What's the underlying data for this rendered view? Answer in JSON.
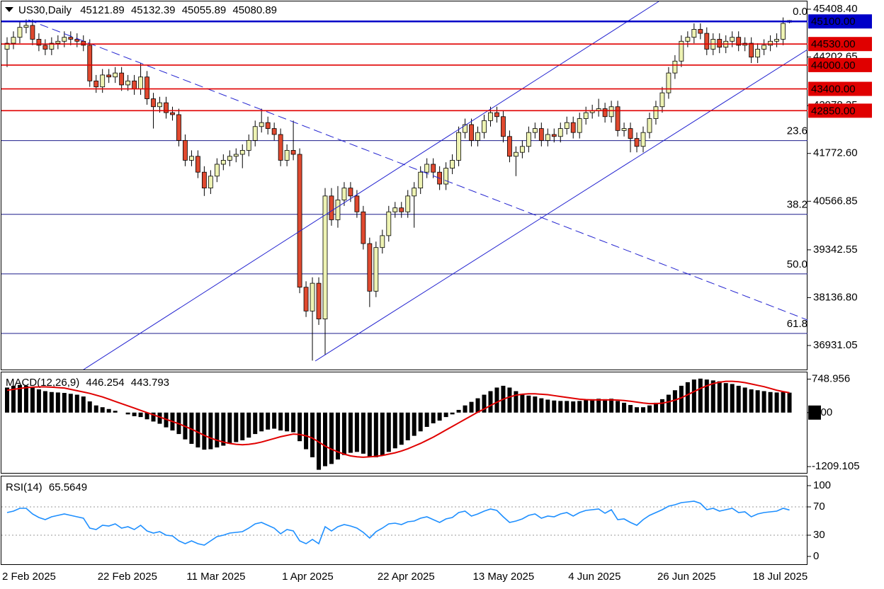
{
  "chart_data": {
    "type": "candlestick",
    "symbol": "US30,Daily",
    "categories": [
      "2 Feb 2025",
      null,
      null,
      null,
      null,
      null,
      null,
      null,
      null,
      null,
      null,
      null,
      null,
      null,
      null,
      "22 Feb 2025",
      null,
      null,
      null,
      null,
      null,
      null,
      null,
      null,
      null,
      null,
      null,
      null,
      null,
      "11 Mar 2025",
      null,
      null,
      null,
      null,
      null,
      null,
      null,
      null,
      null,
      null,
      null,
      null,
      null,
      null,
      "1 Apr 2025",
      null,
      null,
      null,
      null,
      null,
      null,
      null,
      null,
      null,
      null,
      null,
      null,
      null,
      null,
      "22 Apr 2025",
      null,
      null,
      null,
      null,
      null,
      null,
      null,
      null,
      null,
      null,
      null,
      null,
      null,
      null,
      "13 May 2025",
      null,
      null,
      null,
      null,
      null,
      null,
      null,
      null,
      null,
      null,
      null,
      null,
      null,
      null,
      "4 Jun 2025",
      null,
      null,
      null,
      null,
      null,
      null,
      null,
      null,
      null,
      null,
      null,
      null,
      null,
      "26 Jun 2025",
      null,
      null,
      null,
      null,
      null,
      null,
      null,
      null,
      null,
      null,
      null,
      null,
      null,
      null,
      "18 Jul 2025",
      null,
      null,
      null,
      null,
      null
    ],
    "open": [
      44400,
      44550,
      44700,
      44950,
      45000,
      44650,
      44500,
      44400,
      44550,
      44600,
      44700,
      44650,
      44600,
      44500,
      43600,
      43450,
      43750,
      43700,
      43800,
      43500,
      43600,
      43400,
      43700,
      43150,
      42950,
      43050,
      42800,
      42750,
      42100,
      41600,
      41700,
      41300,
      40900,
      41200,
      41500,
      41600,
      41700,
      41750,
      41850,
      42100,
      42450,
      42550,
      42400,
      42250,
      41600,
      41850,
      41750,
      38400,
      37800,
      38500,
      37600,
      40700,
      40100,
      40600,
      40900,
      40700,
      40300,
      39500,
      38300,
      39400,
      39700,
      40300,
      40400,
      40300,
      40700,
      40900,
      41300,
      41500,
      41300,
      41000,
      41400,
      41600,
      42300,
      42500,
      42100,
      42300,
      42600,
      42800,
      42700,
      42200,
      41700,
      41800,
      41950,
      42300,
      42400,
      42100,
      42250,
      42200,
      42400,
      42550,
      42300,
      42650,
      42800,
      42850,
      42900,
      42700,
      42950,
      42350,
      42400,
      42150,
      41950,
      42300,
      42650,
      42950,
      43300,
      43800,
      44100,
      44600,
      44700,
      44900,
      44800,
      44400,
      44650,
      44450,
      44600,
      44700,
      44500,
      44550,
      44200,
      44400,
      44500,
      44600,
      44650,
      45121.89
    ],
    "high": [
      44700,
      44850,
      45100,
      45150,
      45150,
      44800,
      44650,
      44700,
      44750,
      44850,
      44850,
      44800,
      44750,
      44650,
      43750,
      43900,
      43900,
      43950,
      43950,
      43750,
      43750,
      44050,
      43850,
      43300,
      43200,
      43200,
      42950,
      42900,
      42250,
      41850,
      41850,
      41450,
      41350,
      41650,
      41750,
      41850,
      41900,
      42000,
      42250,
      42600,
      42900,
      42700,
      42550,
      42400,
      42000,
      42600,
      41900,
      38550,
      38650,
      38650,
      40900,
      40900,
      40950,
      41050,
      41050,
      40850,
      40450,
      39650,
      39550,
      39850,
      40450,
      40550,
      40550,
      40850,
      41050,
      41450,
      41650,
      41650,
      41450,
      41550,
      41750,
      42450,
      42650,
      42650,
      42450,
      42750,
      42950,
      42950,
      42850,
      42350,
      41950,
      42100,
      42450,
      42550,
      42550,
      42400,
      42400,
      42550,
      42700,
      42700,
      42800,
      42950,
      43000,
      43150,
      43050,
      43100,
      43100,
      42550,
      42550,
      42300,
      42450,
      42800,
      43100,
      43450,
      43950,
      44250,
      44750,
      44850,
      45050,
      45050,
      44950,
      44800,
      44800,
      44750,
      44850,
      44850,
      44700,
      44700,
      44550,
      44650,
      44750,
      44800,
      45200,
      45132.39
    ],
    "low": [
      43950,
      44400,
      44550,
      44800,
      44500,
      44350,
      44250,
      44250,
      44400,
      44450,
      44500,
      44450,
      44350,
      43450,
      43300,
      43300,
      43550,
      43550,
      43350,
      43350,
      43250,
      43250,
      43000,
      42400,
      42800,
      42650,
      42600,
      41950,
      41450,
      41450,
      41150,
      40700,
      40750,
      41050,
      41350,
      41450,
      41550,
      41400,
      41700,
      41950,
      42300,
      42250,
      42100,
      41450,
      41450,
      41600,
      38250,
      37650,
      36550,
      37450,
      36700,
      39950,
      39900,
      40450,
      40550,
      40150,
      39350,
      37900,
      38150,
      39250,
      39550,
      40150,
      40150,
      40150,
      39900,
      40750,
      41150,
      41150,
      40850,
      40850,
      41250,
      41450,
      42150,
      41950,
      41950,
      42150,
      42450,
      42550,
      42050,
      41550,
      41200,
      41650,
      41800,
      42150,
      41950,
      41950,
      42050,
      42050,
      42250,
      42150,
      42150,
      42500,
      42650,
      42700,
      42550,
      42550,
      42200,
      42200,
      41800,
      41800,
      41800,
      42150,
      42500,
      42800,
      43150,
      43650,
      43950,
      44450,
      44550,
      44650,
      44250,
      44250,
      44300,
      44300,
      44450,
      44350,
      44350,
      44050,
      44050,
      44250,
      44350,
      44450,
      44500,
      45055.89
    ],
    "close": [
      44550,
      44700,
      44950,
      45000,
      44650,
      44500,
      44400,
      44550,
      44600,
      44700,
      44650,
      44600,
      44500,
      43600,
      43450,
      43750,
      43700,
      43800,
      43500,
      43600,
      43400,
      43700,
      43150,
      42950,
      43050,
      42800,
      42750,
      42100,
      41600,
      41700,
      41300,
      40900,
      41200,
      41500,
      41600,
      41700,
      41750,
      41850,
      42100,
      42450,
      42550,
      42400,
      42250,
      41600,
      41850,
      41750,
      38400,
      37800,
      38500,
      37600,
      40700,
      40100,
      40600,
      40900,
      40700,
      40300,
      39500,
      38300,
      39400,
      39700,
      40300,
      40400,
      40300,
      40700,
      40900,
      41300,
      41500,
      41300,
      41000,
      41400,
      41600,
      42300,
      42500,
      42100,
      42300,
      42600,
      42800,
      42700,
      42200,
      41700,
      41800,
      41950,
      42300,
      42400,
      42100,
      42250,
      42200,
      42400,
      42550,
      42300,
      42650,
      42800,
      42850,
      42900,
      42700,
      42950,
      42350,
      42400,
      42150,
      41950,
      42300,
      42650,
      42950,
      43300,
      43800,
      44100,
      44600,
      44700,
      44900,
      44800,
      44400,
      44650,
      44450,
      44600,
      44700,
      44500,
      44550,
      44200,
      44400,
      44500,
      44600,
      44650,
      45050,
      45080.89
    ],
    "up_color": "#eef3b3",
    "down_color": "#e0492f",
    "ylim": [
      36325,
      45640
    ],
    "yticks": [
      {
        "value": 45408.4,
        "label": "45408.40"
      },
      44202.65,
      42978.35,
      {
        "value": 41772.6,
        "label": "41772.60"
      },
      40566.85,
      39342.55,
      {
        "value": 38136.8,
        "label": "38136.80"
      },
      36931.05
    ],
    "levels": [
      {
        "value": 45100,
        "label": "45100.00",
        "color": "#0000c8"
      },
      {
        "value": 44530,
        "label": "44530.00",
        "color": "#e00000"
      },
      {
        "value": 44000,
        "label": "44000.00",
        "color": "#e00000"
      },
      {
        "value": 43400,
        "label": "43400.00",
        "color": "#e00000"
      },
      {
        "value": 42850,
        "label": "42850.00",
        "color": "#e00000"
      }
    ],
    "fib_levels": [
      {
        "value": 45100,
        "label": "0.0"
      },
      {
        "value": 42096,
        "label": "23.6"
      },
      {
        "value": 40238,
        "label": "38.2"
      },
      {
        "value": 38736,
        "label": "50.0"
      },
      {
        "value": 37234,
        "label": "61.8"
      }
    ],
    "fib_color": "#1c1c8c",
    "macd": {
      "title": "MACD(12,26,9)",
      "bar_color": "#000000",
      "signal_color": "#e00000",
      "ylim": [
        -1350,
        900
      ],
      "yticks": [
        748.956,
        {
          "value": 0,
          "label": "0.00"
        },
        -1209.105
      ],
      "main": [
        560,
        600,
        620,
        600,
        560,
        520,
        480,
        460,
        450,
        440,
        420,
        400,
        360,
        250,
        160,
        120,
        80,
        40,
        0,
        -40,
        -80,
        -100,
        -150,
        -200,
        -250,
        -330,
        -400,
        -480,
        -600,
        -700,
        -780,
        -830,
        -820,
        -780,
        -740,
        -700,
        -660,
        -620,
        -560,
        -480,
        -420,
        -380,
        -360,
        -400,
        -420,
        -440,
        -640,
        -820,
        -1000,
        -1280,
        -1200,
        -1150,
        -1050,
        -950,
        -900,
        -880,
        -920,
        -1000,
        -1000,
        -960,
        -880,
        -800,
        -720,
        -620,
        -520,
        -420,
        -320,
        -240,
        -180,
        -100,
        -40,
        60,
        160,
        240,
        320,
        400,
        480,
        560,
        600,
        560,
        480,
        420,
        380,
        360,
        320,
        290,
        270,
        260,
        260,
        250,
        260,
        280,
        300,
        310,
        300,
        310,
        260,
        220,
        170,
        120,
        120,
        160,
        220,
        300,
        400,
        500,
        600,
        680,
        740,
        760,
        740,
        720,
        700,
        660,
        640,
        600,
        560,
        520,
        500,
        480,
        460,
        450,
        460,
        446.254
      ],
      "signal": [
        500,
        520,
        540,
        560,
        570,
        575,
        575,
        570,
        560,
        550,
        520,
        490,
        460,
        430,
        390,
        350,
        300,
        250,
        200,
        150,
        100,
        50,
        0,
        -50,
        -100,
        -150,
        -200,
        -250,
        -310,
        -370,
        -440,
        -510,
        -570,
        -620,
        -660,
        -690,
        -710,
        -720,
        -710,
        -690,
        -660,
        -620,
        -580,
        -540,
        -510,
        -480,
        -490,
        -520,
        -570,
        -660,
        -750,
        -820,
        -880,
        -930,
        -970,
        -990,
        -1000,
        -990,
        -980,
        -960,
        -930,
        -900,
        -860,
        -810,
        -750,
        -690,
        -620,
        -550,
        -470,
        -390,
        -310,
        -230,
        -150,
        -70,
        10,
        80,
        160,
        230,
        300,
        350,
        390,
        410,
        420,
        420,
        410,
        400,
        380,
        360,
        340,
        320,
        300,
        290,
        285,
        285,
        285,
        285,
        280,
        270,
        255,
        235,
        215,
        200,
        200,
        210,
        240,
        280,
        330,
        400,
        470,
        540,
        600,
        650,
        680,
        700,
        700,
        690,
        670,
        640,
        610,
        580,
        540,
        500,
        470,
        443.793
      ]
    },
    "rsi": {
      "title": "RSI(14)",
      "color": "#1e8fff",
      "ylim": [
        0,
        100
      ],
      "yticks": [
        100,
        70,
        30,
        0
      ],
      "levels": [
        70,
        30
      ],
      "values": [
        62,
        64,
        68,
        68,
        60,
        55,
        52,
        56,
        58,
        60,
        58,
        56,
        54,
        40,
        38,
        44,
        43,
        46,
        40,
        42,
        38,
        44,
        36,
        33,
        35,
        30,
        29,
        22,
        18,
        22,
        18,
        16,
        22,
        28,
        30,
        33,
        34,
        35,
        40,
        46,
        48,
        44,
        40,
        32,
        38,
        36,
        22,
        18,
        24,
        18,
        42,
        36,
        42,
        45,
        43,
        40,
        34,
        26,
        35,
        40,
        46,
        47,
        45,
        49,
        50,
        54,
        56,
        52,
        48,
        53,
        55,
        62,
        64,
        57,
        60,
        64,
        67,
        65,
        56,
        48,
        50,
        53,
        58,
        60,
        54,
        57,
        56,
        60,
        62,
        57,
        62,
        65,
        66,
        67,
        61,
        66,
        52,
        53,
        48,
        44,
        52,
        58,
        62,
        66,
        71,
        73,
        76,
        77,
        78,
        75,
        66,
        68,
        64,
        66,
        68,
        62,
        63,
        56,
        60,
        62,
        63,
        64,
        68,
        65.5649
      ]
    }
  }
}
